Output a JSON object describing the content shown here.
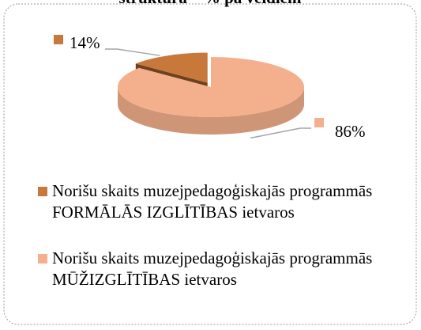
{
  "chart_data": {
    "type": "pie",
    "title": "struktūra – % pa veidiem",
    "categories": [
      "Norišu skaits muzejpedagoģiskajās programmās FORMĀLĀS IZGLĪTĪBAS ietvaros",
      "Norišu skaits muzejpedagoģiskajās programmās MŪŽIZGLĪTĪBAS ietvaros"
    ],
    "values": [
      14,
      86
    ],
    "value_labels": [
      "14%",
      "86%"
    ],
    "colors": [
      "#c8783a",
      "#f4b08c"
    ]
  }
}
